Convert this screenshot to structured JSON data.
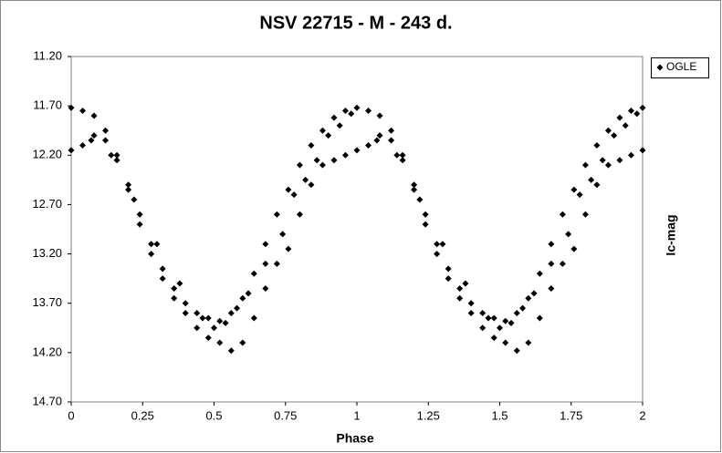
{
  "chart_data": {
    "type": "scatter",
    "title": "NSV 22715 - M - 243 d.",
    "x_label": "Phase",
    "y_label": "Ic-mag",
    "xlim": [
      0,
      2
    ],
    "xticks": [
      0,
      0.25,
      0.5,
      0.75,
      1,
      1.25,
      1.5,
      1.75,
      2
    ],
    "ylim": [
      11.2,
      14.7
    ],
    "y_inverted": true,
    "yticks": [
      {
        "value": 11.2,
        "label": "11.20"
      },
      {
        "value": 11.7,
        "label": "11.70"
      },
      {
        "value": 12.2,
        "label": "12.20"
      },
      {
        "value": 12.7,
        "label": "12.70"
      },
      {
        "value": 13.2,
        "label": "13.20"
      },
      {
        "value": 13.7,
        "label": "13.70"
      },
      {
        "value": 14.2,
        "label": "14.20"
      },
      {
        "value": 14.7,
        "label": "14.70"
      }
    ],
    "grid": false,
    "legend": "right",
    "series": [
      {
        "name": "OGLE",
        "color": "#000000",
        "x": [
          0,
          0.04,
          0.08,
          0.12,
          0.16,
          0.2,
          0.24,
          0.28,
          0.32,
          0.36,
          0.4,
          0.44,
          0.48,
          0.52,
          0.56,
          0.6,
          0.64,
          0.68,
          0.72,
          0.76,
          0.8,
          0.84,
          0.88,
          0.92,
          0.96,
          0,
          0.04,
          0.08,
          0.12,
          0.16,
          0.2,
          0.24,
          0.28,
          0.32,
          0.36,
          0.4,
          0.44,
          0.48,
          0.52,
          0.56,
          0.6,
          0.64,
          0.68,
          0.72,
          0.76,
          0.8,
          0.84,
          0.88,
          0.92,
          0.96,
          0.07,
          0.14,
          0.22,
          0.3,
          0.38,
          0.46,
          0.5,
          0.54,
          0.58,
          0.62,
          0.68,
          0.74,
          0.78,
          0.82,
          0.86,
          0.9,
          0.94,
          0.98,
          1,
          1.04,
          1.08,
          1.12,
          1.16,
          1.2,
          1.24,
          1.28,
          1.32,
          1.36,
          1.4,
          1.44,
          1.48,
          1.52,
          1.56,
          1.6,
          1.64,
          1.68,
          1.72,
          1.76,
          1.8,
          1.84,
          1.88,
          1.92,
          1.96,
          1,
          1.04,
          1.08,
          1.12,
          1.16,
          1.2,
          1.24,
          1.28,
          1.32,
          1.36,
          1.4,
          1.44,
          1.48,
          1.52,
          1.56,
          1.6,
          1.64,
          1.68,
          1.72,
          1.76,
          1.8,
          1.84,
          1.88,
          1.92,
          1.96,
          1.07,
          1.14,
          1.22,
          1.3,
          1.38,
          1.46,
          1.5,
          1.54,
          1.58,
          1.62,
          1.68,
          1.74,
          1.78,
          1.82,
          1.86,
          1.9,
          1.94,
          1.98,
          2,
          2
        ],
        "values": [
          11.72,
          11.75,
          11.8,
          11.95,
          12.2,
          12.5,
          12.8,
          13.1,
          13.35,
          13.55,
          13.7,
          13.8,
          13.85,
          13.88,
          13.8,
          13.65,
          13.4,
          13.1,
          12.8,
          12.55,
          12.3,
          12.1,
          11.95,
          11.82,
          11.75,
          12.15,
          12.1,
          12.0,
          12.05,
          12.25,
          12.55,
          12.9,
          13.2,
          13.45,
          13.65,
          13.8,
          13.95,
          14.05,
          14.1,
          14.18,
          14.1,
          13.85,
          13.55,
          13.3,
          13.15,
          12.8,
          12.5,
          12.3,
          12.25,
          12.2,
          12.05,
          12.2,
          12.65,
          13.1,
          13.5,
          13.85,
          13.95,
          13.9,
          13.75,
          13.6,
          13.3,
          13.0,
          12.6,
          12.45,
          12.25,
          12.0,
          11.9,
          11.78,
          11.72,
          11.75,
          11.8,
          11.95,
          12.2,
          12.5,
          12.8,
          13.1,
          13.35,
          13.55,
          13.7,
          13.8,
          13.85,
          13.88,
          13.8,
          13.65,
          13.4,
          13.1,
          12.8,
          12.55,
          12.3,
          12.1,
          11.95,
          11.82,
          11.75,
          12.15,
          12.1,
          12.0,
          12.05,
          12.25,
          12.55,
          12.9,
          13.2,
          13.45,
          13.65,
          13.8,
          13.95,
          14.05,
          14.1,
          14.18,
          14.1,
          13.85,
          13.55,
          13.3,
          13.15,
          12.8,
          12.5,
          12.3,
          12.25,
          12.2,
          12.05,
          12.2,
          12.65,
          13.1,
          13.5,
          13.85,
          13.95,
          13.9,
          13.75,
          13.6,
          13.3,
          13.0,
          12.6,
          12.45,
          12.25,
          12.0,
          11.9,
          11.78,
          11.72,
          12.15
        ]
      }
    ]
  }
}
